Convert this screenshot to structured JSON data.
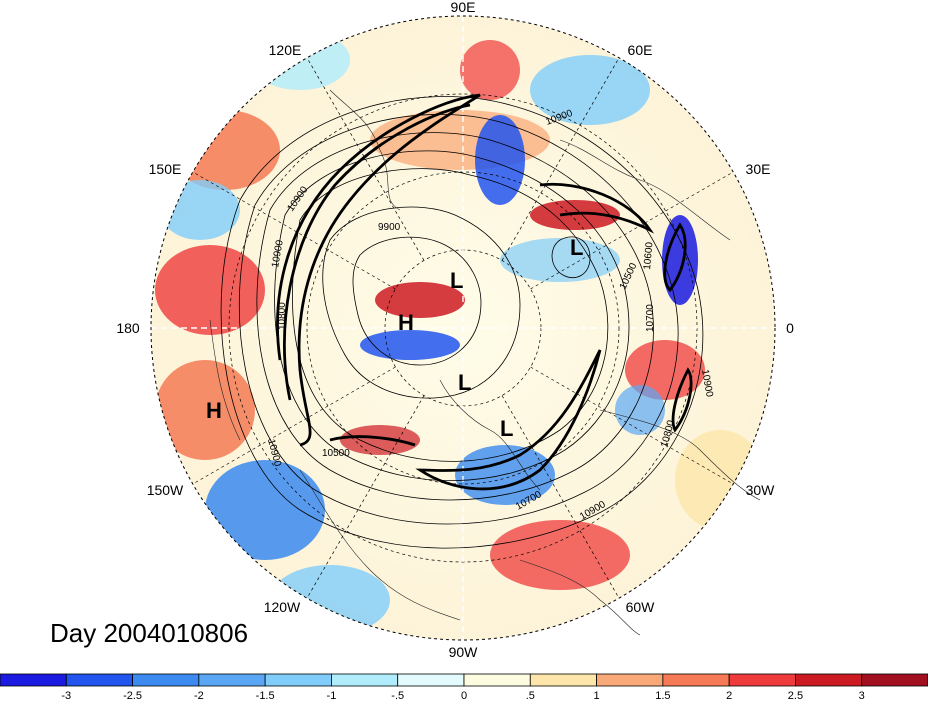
{
  "title": "Day 2004010806",
  "longitude_labels": [
    "90E",
    "60E",
    "30E",
    "0",
    "30W",
    "60W",
    "90W",
    "120W",
    "150W",
    "180",
    "150E",
    "120E"
  ],
  "pressure_centers": [
    "H",
    "H",
    "L",
    "L",
    "L",
    "L"
  ],
  "contour_labels": [
    "10900",
    "10900",
    "9900",
    "10900",
    "10900",
    "10500",
    "10700",
    "10600",
    "10500",
    "10900",
    "10800",
    "10700",
    "10900",
    "10800"
  ],
  "colorbar": {
    "ticks": [
      "-3",
      "-2.5",
      "-2",
      "-1.5",
      "-1",
      "-.5",
      "0",
      ".5",
      "1",
      "1.5",
      "2",
      "2.5",
      "3"
    ],
    "colors": [
      "#1a1ae0",
      "#2255ee",
      "#3a8af0",
      "#5aa8f5",
      "#80cdfa",
      "#b0ecfc",
      "#e4fbfe",
      "#fefce0",
      "#fde6aa",
      "#f9a978",
      "#f57a55",
      "#ef3b3b",
      "#cc1a22",
      "#a01020"
    ]
  }
}
